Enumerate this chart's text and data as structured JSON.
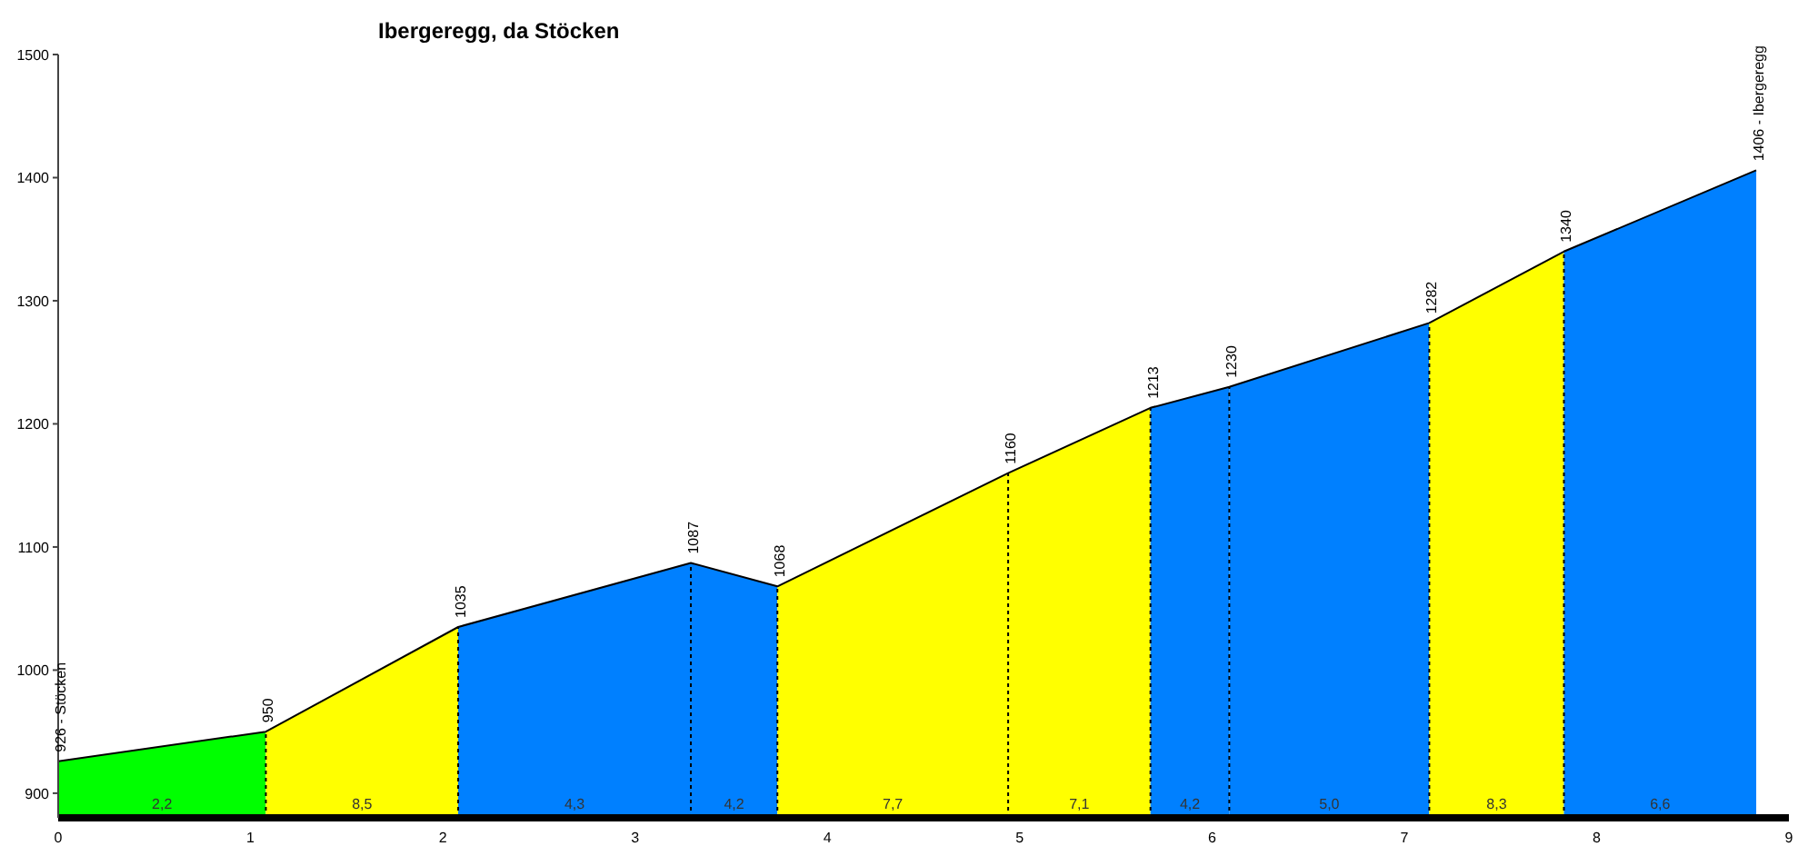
{
  "chart_data": {
    "type": "area",
    "title": "Ibergeregg, da Stöcken",
    "xlim": [
      0,
      9
    ],
    "xticks": [
      0,
      1,
      2,
      3,
      4,
      5,
      6,
      7,
      8,
      9
    ],
    "ylim": [
      880,
      1500
    ],
    "yticks": [
      900,
      1000,
      1100,
      1200,
      1300,
      1400,
      1500
    ],
    "grid": false,
    "legend": false,
    "series": [
      {
        "color": "#00ff00",
        "x": [
          0,
          1.08
        ],
        "values": [
          926,
          950
        ]
      },
      {
        "color": "#ffff00",
        "x": [
          1.08,
          2.08
        ],
        "values": [
          950,
          1035
        ]
      },
      {
        "color": "#0080ff",
        "x": [
          2.08,
          3.29
        ],
        "values": [
          1035,
          1087
        ]
      },
      {
        "color": "#0080ff",
        "x": [
          3.29,
          3.74
        ],
        "values": [
          1087,
          1068
        ]
      },
      {
        "color": "#ffff00",
        "x": [
          3.74,
          4.94
        ],
        "values": [
          1068,
          1160
        ]
      },
      {
        "color": "#ffff00",
        "x": [
          4.94,
          5.68
        ],
        "values": [
          1160,
          1213
        ]
      },
      {
        "color": "#0080ff",
        "x": [
          5.68,
          6.09
        ],
        "values": [
          1213,
          1230
        ]
      },
      {
        "color": "#0080ff",
        "x": [
          6.09,
          7.13
        ],
        "values": [
          1230,
          1282
        ]
      },
      {
        "color": "#ffff00",
        "x": [
          7.13,
          7.83
        ],
        "values": [
          1282,
          1340
        ]
      },
      {
        "color": "#0080ff",
        "x": [
          7.83,
          8.83
        ],
        "values": [
          1340,
          1406
        ]
      },
      {
        "type": "line",
        "color": "#000000",
        "marker": "none",
        "x": [
          0,
          1.08,
          2.08,
          3.29,
          3.74,
          4.94,
          5.68,
          6.09,
          7.13,
          7.83,
          8.83
        ],
        "values": [
          926,
          950,
          1035,
          1087,
          1068,
          1160,
          1213,
          1230,
          1282,
          1340,
          1406
        ],
        "value_labels": [
          "926 - Stöcken",
          "950",
          "1035",
          "1087",
          "1068",
          "1160",
          "1213",
          "1230",
          "1282",
          "1340",
          "1406 - Ibergeregg"
        ]
      }
    ],
    "ref_lines": [
      {
        "axis": "x",
        "value": 1.08,
        "color": "#000000",
        "line_style": "dotted"
      },
      {
        "axis": "x",
        "value": 2.08,
        "color": "#000000",
        "line_style": "dotted"
      },
      {
        "axis": "x",
        "value": 3.29,
        "color": "#000000",
        "line_style": "dotted"
      },
      {
        "axis": "x",
        "value": 3.74,
        "color": "#000000",
        "line_style": "dotted"
      },
      {
        "axis": "x",
        "value": 4.94,
        "color": "#000000",
        "line_style": "dotted"
      },
      {
        "axis": "x",
        "value": 5.68,
        "color": "#000000",
        "line_style": "dotted"
      },
      {
        "axis": "x",
        "value": 6.09,
        "color": "#000000",
        "line_style": "dotted"
      },
      {
        "axis": "x",
        "value": 7.13,
        "color": "#000000",
        "line_style": "dotted"
      },
      {
        "axis": "x",
        "value": 7.83,
        "color": "#000000",
        "line_style": "dotted"
      }
    ],
    "annotations": [
      "2,2",
      "8,5",
      "4,3",
      "4,2",
      "7,7",
      "7,1",
      "4,2",
      "5,0",
      "8,3",
      "6,6"
    ]
  }
}
